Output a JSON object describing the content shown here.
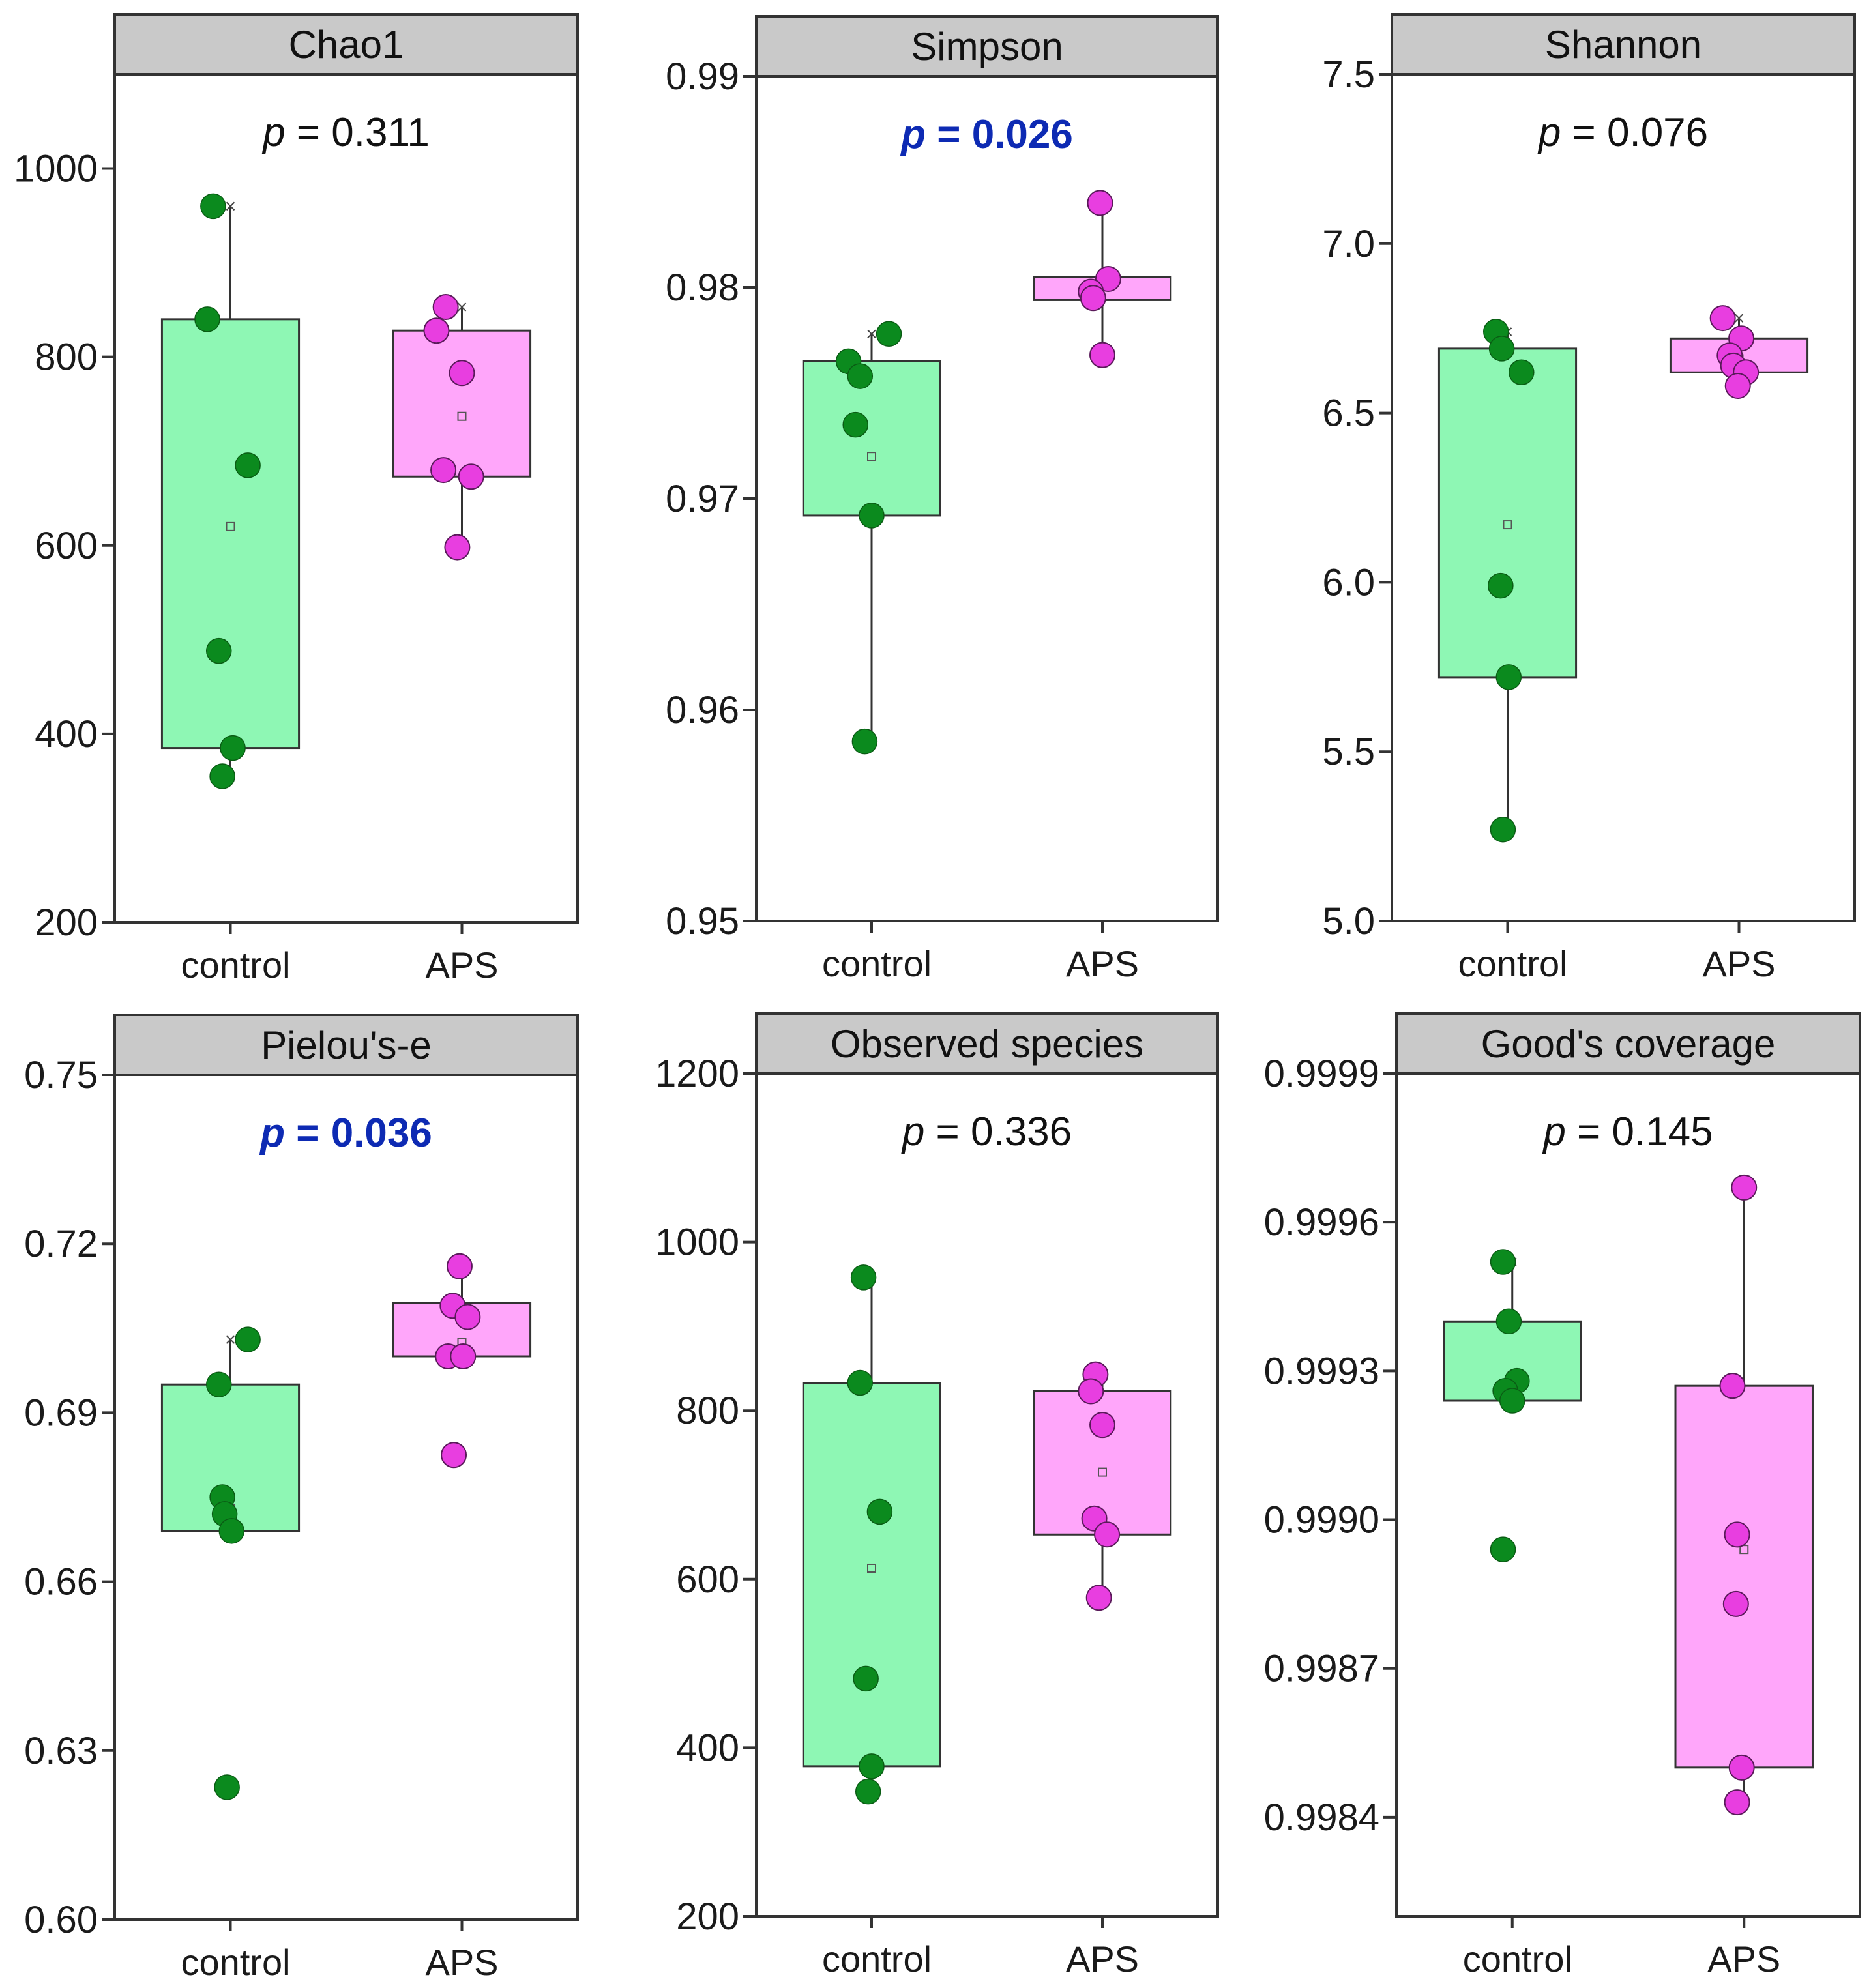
{
  "colors": {
    "control_fill": "#8ef7b4",
    "control_point": "#0b8a1e",
    "aps_fill": "#ffa6fa",
    "aps_point": "#e83ee0",
    "title_bar": "#c9c9c9",
    "sig_text": "#0d2ab3",
    "plain_text": "#111111"
  },
  "chart_data": [
    {
      "type": "box",
      "title": "Chao1",
      "p_prefix": "p",
      "p_value": "= 0.311",
      "significant": false,
      "ylim": [
        200,
        1100
      ],
      "yticks": [
        200,
        400,
        600,
        800,
        1000
      ],
      "ytick_labels": [
        "200",
        "400",
        "600",
        "800",
        "1000"
      ],
      "categories": [
        "control",
        "APS"
      ],
      "groups": [
        {
          "name": "control",
          "q1": 385,
          "q3": 840,
          "whisker_low": 355,
          "whisker_high": 960,
          "mean": 620,
          "points": [
            {
              "v": 960,
              "j": -0.15
            },
            {
              "v": 840,
              "j": -0.2
            },
            {
              "v": 685,
              "j": 0.15
            },
            {
              "v": 488,
              "j": -0.1
            },
            {
              "v": 385,
              "j": 0.02
            },
            {
              "v": 355,
              "j": -0.07
            }
          ]
        },
        {
          "name": "APS",
          "q1": 673,
          "q3": 828,
          "whisker_low": 598,
          "whisker_high": 853,
          "mean": 737,
          "points": [
            {
              "v": 853,
              "j": -0.14
            },
            {
              "v": 828,
              "j": -0.22
            },
            {
              "v": 783,
              "j": 0.0
            },
            {
              "v": 680,
              "j": -0.16
            },
            {
              "v": 673,
              "j": 0.08
            },
            {
              "v": 598,
              "j": -0.04
            }
          ]
        }
      ]
    },
    {
      "type": "box",
      "title": "Simpson",
      "p_prefix": "p",
      "p_value": "= 0.026",
      "significant": true,
      "ylim": [
        0.95,
        0.99
      ],
      "yticks": [
        0.95,
        0.96,
        0.97,
        0.98,
        0.99
      ],
      "ytick_labels": [
        "0.95",
        "0.96",
        "0.97",
        "0.98",
        "0.99"
      ],
      "categories": [
        "control",
        "APS"
      ],
      "groups": [
        {
          "name": "control",
          "q1": 0.9692,
          "q3": 0.9765,
          "whisker_low": 0.9585,
          "whisker_high": 0.9778,
          "mean": 0.972,
          "points": [
            {
              "v": 0.9778,
              "j": 0.15
            },
            {
              "v": 0.9765,
              "j": -0.2
            },
            {
              "v": 0.9758,
              "j": -0.1
            },
            {
              "v": 0.9735,
              "j": -0.14
            },
            {
              "v": 0.9692,
              "j": 0.0
            },
            {
              "v": 0.9585,
              "j": -0.06
            }
          ]
        },
        {
          "name": "APS",
          "q1": 0.9794,
          "q3": 0.9805,
          "whisker_low": 0.9768,
          "whisker_high": 0.984,
          "mean": 0.9802,
          "points": [
            {
              "v": 0.984,
              "j": -0.02
            },
            {
              "v": 0.9804,
              "j": 0.05
            },
            {
              "v": 0.9798,
              "j": -0.1
            },
            {
              "v": 0.9795,
              "j": -0.08
            },
            {
              "v": 0.9768,
              "j": 0.0
            }
          ]
        }
      ]
    },
    {
      "type": "box",
      "title": "Shannon",
      "p_prefix": "p",
      "p_value": "= 0.076",
      "significant": false,
      "ylim": [
        5.0,
        7.5
      ],
      "yticks": [
        5.0,
        5.5,
        6.0,
        6.5,
        7.0,
        7.5
      ],
      "ytick_labels": [
        "5.0",
        "5.5",
        "6.0",
        "6.5",
        "7.0",
        "7.5"
      ],
      "categories": [
        "control",
        "APS"
      ],
      "groups": [
        {
          "name": "control",
          "q1": 5.72,
          "q3": 6.69,
          "whisker_low": 5.27,
          "whisker_high": 6.74,
          "mean": 6.17,
          "points": [
            {
              "v": 6.74,
              "j": -0.1
            },
            {
              "v": 6.69,
              "j": -0.05
            },
            {
              "v": 6.62,
              "j": 0.12
            },
            {
              "v": 5.99,
              "j": -0.06
            },
            {
              "v": 5.72,
              "j": 0.01
            },
            {
              "v": 5.27,
              "j": -0.04
            }
          ]
        },
        {
          "name": "APS",
          "q1": 6.62,
          "q3": 6.72,
          "whisker_low": 6.58,
          "whisker_high": 6.78,
          "mean": 6.66,
          "points": [
            {
              "v": 6.78,
              "j": -0.14
            },
            {
              "v": 6.72,
              "j": 0.02
            },
            {
              "v": 6.67,
              "j": -0.08
            },
            {
              "v": 6.64,
              "j": -0.05
            },
            {
              "v": 6.62,
              "j": 0.06
            },
            {
              "v": 6.58,
              "j": -0.01
            }
          ]
        }
      ]
    },
    {
      "type": "box",
      "title": "Pielou's-e",
      "p_prefix": "p",
      "p_value": "= 0.036",
      "significant": true,
      "ylim": [
        0.6,
        0.75
      ],
      "yticks": [
        0.6,
        0.63,
        0.66,
        0.69,
        0.72,
        0.75
      ],
      "ytick_labels": [
        "0.60",
        "0.63",
        "0.66",
        "0.69",
        "0.72",
        "0.75"
      ],
      "categories": [
        "control",
        "APS"
      ],
      "groups": [
        {
          "name": "control",
          "q1": 0.669,
          "q3": 0.695,
          "whisker_low": 0.669,
          "whisker_high": 0.703,
          "mean": 0.673,
          "points": [
            {
              "v": 0.703,
              "j": 0.15
            },
            {
              "v": 0.695,
              "j": -0.1
            },
            {
              "v": 0.675,
              "j": -0.07
            },
            {
              "v": 0.672,
              "j": -0.05
            },
            {
              "v": 0.669,
              "j": 0.01
            },
            {
              "v": 0.6235,
              "j": -0.03
            }
          ]
        },
        {
          "name": "APS",
          "q1": 0.7,
          "q3": 0.7095,
          "whisker_low": 0.7,
          "whisker_high": 0.716,
          "mean": 0.7025,
          "points": [
            {
              "v": 0.716,
              "j": -0.02
            },
            {
              "v": 0.709,
              "j": -0.08
            },
            {
              "v": 0.707,
              "j": 0.05
            },
            {
              "v": 0.7,
              "j": -0.12
            },
            {
              "v": 0.7,
              "j": 0.01
            },
            {
              "v": 0.6825,
              "j": -0.07
            }
          ]
        }
      ]
    },
    {
      "type": "box",
      "title": "Observed  species",
      "p_prefix": "p",
      "p_value": "= 0.336",
      "significant": false,
      "ylim": [
        200,
        1200
      ],
      "yticks": [
        200,
        400,
        600,
        800,
        1000,
        1200
      ],
      "ytick_labels": [
        "200",
        "400",
        "600",
        "800",
        "1000",
        "1200"
      ],
      "categories": [
        "control",
        "APS"
      ],
      "groups": [
        {
          "name": "control",
          "q1": 378,
          "q3": 833,
          "whisker_low": 348,
          "whisker_high": 958,
          "mean": 613,
          "points": [
            {
              "v": 958,
              "j": -0.07
            },
            {
              "v": 833,
              "j": -0.1
            },
            {
              "v": 680,
              "j": 0.07
            },
            {
              "v": 482,
              "j": -0.05
            },
            {
              "v": 378,
              "j": 0.0
            },
            {
              "v": 348,
              "j": -0.03
            }
          ]
        },
        {
          "name": "APS",
          "q1": 653,
          "q3": 823,
          "whisker_low": 578,
          "whisker_high": 843,
          "mean": 727,
          "points": [
            {
              "v": 843,
              "j": -0.06
            },
            {
              "v": 823,
              "j": -0.1
            },
            {
              "v": 783,
              "j": 0.0
            },
            {
              "v": 672,
              "j": -0.07
            },
            {
              "v": 653,
              "j": 0.04
            },
            {
              "v": 578,
              "j": -0.03
            }
          ]
        }
      ]
    },
    {
      "type": "box",
      "title": "Good's coverage",
      "p_prefix": "p",
      "p_value": "= 0.145",
      "significant": false,
      "ylim": [
        0.9982,
        0.9999
      ],
      "yticks": [
        0.9984,
        0.9987,
        0.999,
        0.9993,
        0.9996,
        0.9999
      ],
      "ytick_labels": [
        "0.9984",
        "0.9987",
        "0.9990",
        "0.9993",
        "0.9996",
        "0.9999"
      ],
      "categories": [
        "control",
        "APS"
      ],
      "groups": [
        {
          "name": "control",
          "q1": 0.99924,
          "q3": 0.9994,
          "whisker_low": 0.99924,
          "whisker_high": 0.99952,
          "mean": 0.99929,
          "points": [
            {
              "v": 0.99952,
              "j": -0.08
            },
            {
              "v": 0.9994,
              "j": -0.03
            },
            {
              "v": 0.99928,
              "j": 0.04
            },
            {
              "v": 0.99926,
              "j": -0.06
            },
            {
              "v": 0.99924,
              "j": 0.0
            },
            {
              "v": 0.99894,
              "j": -0.08
            }
          ]
        },
        {
          "name": "APS",
          "q1": 0.9985,
          "q3": 0.99927,
          "whisker_low": 0.99843,
          "whisker_high": 0.99967,
          "mean": 0.99894,
          "points": [
            {
              "v": 0.99967,
              "j": 0.0
            },
            {
              "v": 0.99927,
              "j": -0.1
            },
            {
              "v": 0.99897,
              "j": -0.06
            },
            {
              "v": 0.99883,
              "j": -0.07
            },
            {
              "v": 0.9985,
              "j": -0.02
            },
            {
              "v": 0.99843,
              "j": -0.06
            }
          ]
        }
      ]
    }
  ]
}
